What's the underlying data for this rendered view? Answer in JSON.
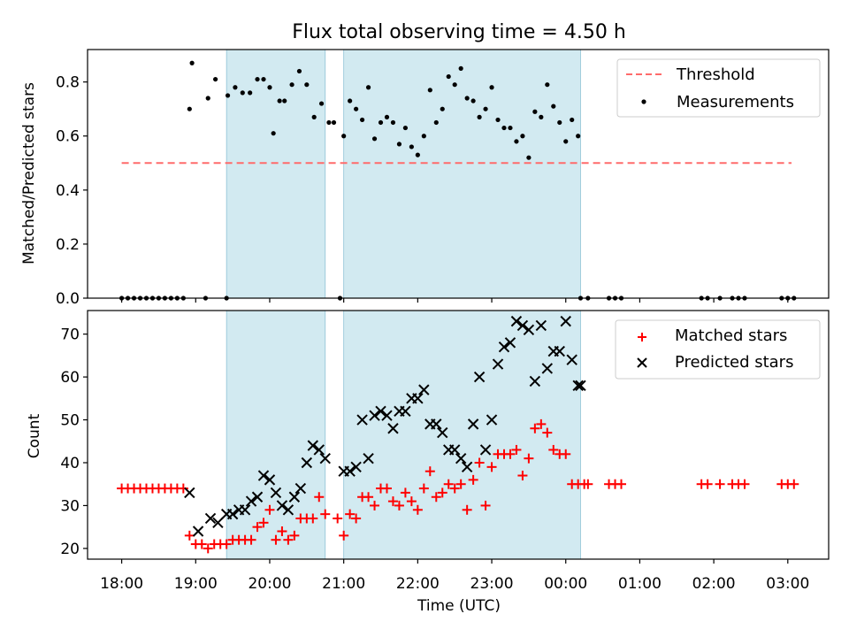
{
  "figure": {
    "title": "Flux total observing time = 4.50 h"
  },
  "chart_data": [
    {
      "type": "scatter",
      "ylabel": "Matched/Predicted stars",
      "ylim": [
        0,
        0.92
      ],
      "yticks": [
        "0.0",
        "0.2",
        "0.4",
        "0.6",
        "0.8"
      ],
      "grid": false,
      "legend": "top-right",
      "shaded_intervals": [
        [
          "19:25",
          "20:45"
        ],
        [
          "21:00",
          "00:12"
        ]
      ],
      "series": [
        {
          "name": "Threshold",
          "kind": "dashed-line",
          "color": "#ff6b6b",
          "x": [
            "18:00",
            "03:03"
          ],
          "y": [
            0.5,
            0.5
          ]
        },
        {
          "name": "Measurements",
          "kind": "points",
          "color": "#000000",
          "x": [
            "18:00",
            "18:05",
            "18:10",
            "18:15",
            "18:20",
            "18:25",
            "18:30",
            "18:35",
            "18:40",
            "18:45",
            "18:50",
            "18:55",
            "18:57",
            "19:08",
            "19:10",
            "19:16",
            "19:25",
            "19:26",
            "19:32",
            "19:38",
            "19:44",
            "19:50",
            "19:55",
            "20:00",
            "20:03",
            "20:08",
            "20:12",
            "20:18",
            "20:24",
            "20:30",
            "20:36",
            "20:42",
            "20:48",
            "20:52",
            "21:00",
            "20:57",
            "21:05",
            "21:10",
            "21:15",
            "21:20",
            "21:25",
            "21:30",
            "21:35",
            "21:40",
            "21:45",
            "21:50",
            "21:55",
            "22:00",
            "22:05",
            "22:10",
            "22:15",
            "22:20",
            "22:25",
            "22:30",
            "22:35",
            "22:40",
            "22:45",
            "22:50",
            "22:55",
            "23:00",
            "23:05",
            "23:10",
            "23:15",
            "23:20",
            "23:25",
            "23:30",
            "23:35",
            "23:40",
            "23:45",
            "23:50",
            "23:55",
            "00:00",
            "00:05",
            "00:10",
            "00:12",
            "00:18",
            "00:35",
            "00:40",
            "00:45",
            "01:50",
            "01:55",
            "02:05",
            "02:15",
            "02:20",
            "02:25",
            "02:55",
            "03:00",
            "03:05"
          ],
          "y": [
            0,
            0,
            0,
            0,
            0,
            0,
            0,
            0,
            0,
            0,
            0,
            0.7,
            0.87,
            0,
            0.74,
            0.81,
            0,
            0.75,
            0.78,
            0.76,
            0.76,
            0.81,
            0.81,
            0.78,
            0.61,
            0.73,
            0.73,
            0.79,
            0.84,
            0.79,
            0.67,
            0.72,
            0.65,
            0.65,
            0.6,
            0,
            0.73,
            0.7,
            0.66,
            0.78,
            0.59,
            0.65,
            0.67,
            0.65,
            0.57,
            0.63,
            0.56,
            0.53,
            0.6,
            0.77,
            0.65,
            0.7,
            0.82,
            0.79,
            0.85,
            0.74,
            0.73,
            0.67,
            0.7,
            0.78,
            0.66,
            0.63,
            0.63,
            0.58,
            0.6,
            0.52,
            0.69,
            0.67,
            0.79,
            0.71,
            0.65,
            0.58,
            0.66,
            0.6,
            0,
            0,
            0,
            0,
            0,
            0,
            0,
            0,
            0,
            0,
            0,
            0,
            0,
            0
          ]
        }
      ]
    },
    {
      "type": "scatter",
      "xlabel": "Time (UTC)",
      "ylabel": "Count",
      "ylim": [
        17.5,
        75.5
      ],
      "yticks": [
        "20",
        "30",
        "40",
        "50",
        "60",
        "70"
      ],
      "xticks": [
        "18:00",
        "19:00",
        "20:00",
        "21:00",
        "22:00",
        "23:00",
        "00:00",
        "01:00",
        "02:00",
        "03:00"
      ],
      "grid": false,
      "legend": "top-right",
      "shaded_intervals": [
        [
          "19:25",
          "20:45"
        ],
        [
          "21:00",
          "00:12"
        ]
      ],
      "series": [
        {
          "name": "Matched stars",
          "marker": "plus",
          "color": "#ff0000",
          "x": [
            "18:00",
            "18:05",
            "18:10",
            "18:15",
            "18:20",
            "18:25",
            "18:30",
            "18:35",
            "18:40",
            "18:45",
            "18:50",
            "18:55",
            "19:00",
            "19:05",
            "19:10",
            "19:15",
            "19:20",
            "19:25",
            "19:30",
            "19:35",
            "19:40",
            "19:45",
            "19:50",
            "19:55",
            "20:00",
            "20:05",
            "20:10",
            "20:15",
            "20:20",
            "20:25",
            "20:30",
            "20:35",
            "20:40",
            "20:45",
            "20:55",
            "21:00",
            "21:05",
            "21:10",
            "21:15",
            "21:20",
            "21:25",
            "21:30",
            "21:35",
            "21:40",
            "21:45",
            "21:50",
            "21:55",
            "22:00",
            "22:05",
            "22:10",
            "22:15",
            "22:20",
            "22:25",
            "22:30",
            "22:35",
            "22:40",
            "22:45",
            "22:50",
            "22:55",
            "23:00",
            "23:05",
            "23:10",
            "23:15",
            "23:20",
            "23:25",
            "23:30",
            "23:35",
            "23:40",
            "23:45",
            "23:50",
            "23:55",
            "00:00",
            "00:05",
            "00:10",
            "00:15",
            "00:18",
            "00:35",
            "00:40",
            "00:45",
            "01:50",
            "01:55",
            "02:05",
            "02:15",
            "02:20",
            "02:25",
            "02:55",
            "03:00",
            "03:05"
          ],
          "y": [
            34,
            34,
            34,
            34,
            34,
            34,
            34,
            34,
            34,
            34,
            34,
            23,
            21,
            21,
            20,
            21,
            21,
            21,
            22,
            22,
            22,
            22,
            25,
            26,
            29,
            22,
            24,
            22,
            23,
            27,
            27,
            27,
            32,
            28,
            27,
            23,
            28,
            27,
            32,
            32,
            30,
            34,
            34,
            31,
            30,
            33,
            31,
            29,
            34,
            38,
            32,
            33,
            35,
            34,
            35,
            29,
            36,
            40,
            30,
            39,
            42,
            42,
            42,
            43,
            37,
            41,
            48,
            49,
            47,
            43,
            42,
            42,
            35,
            35,
            35,
            35,
            35,
            35,
            35,
            35,
            35,
            35,
            35,
            35,
            35,
            35,
            35,
            35
          ]
        },
        {
          "name": "Predicted stars",
          "marker": "x",
          "color": "#000000",
          "x": [
            "18:55",
            "19:02",
            "19:12",
            "19:18",
            "19:25",
            "19:30",
            "19:35",
            "19:40",
            "19:45",
            "19:50",
            "19:55",
            "20:00",
            "20:05",
            "20:10",
            "20:15",
            "20:20",
            "20:25",
            "20:30",
            "20:35",
            "20:40",
            "20:45",
            "21:00",
            "21:05",
            "21:10",
            "21:15",
            "21:20",
            "21:25",
            "21:30",
            "21:35",
            "21:40",
            "21:45",
            "21:50",
            "21:55",
            "22:00",
            "22:05",
            "22:10",
            "22:15",
            "22:20",
            "22:25",
            "22:30",
            "22:35",
            "22:40",
            "22:45",
            "22:50",
            "22:55",
            "23:00",
            "23:05",
            "23:10",
            "23:15",
            "23:20",
            "23:25",
            "23:30",
            "23:35",
            "23:40",
            "23:45",
            "23:50",
            "23:55",
            "00:00",
            "00:05",
            "00:10",
            "00:12"
          ],
          "y": [
            33,
            24,
            27,
            26,
            28,
            28,
            29,
            29,
            31,
            32,
            37,
            36,
            33,
            30,
            29,
            32,
            34,
            40,
            44,
            43,
            41,
            38,
            38,
            39,
            50,
            41,
            51,
            52,
            51,
            48,
            52,
            52,
            55,
            55,
            57,
            49,
            49,
            47,
            43,
            43,
            41,
            39,
            49,
            60,
            43,
            50,
            63,
            67,
            68,
            73,
            72,
            71,
            59,
            72,
            62,
            66,
            66,
            73,
            64,
            58,
            58
          ]
        }
      ]
    }
  ]
}
